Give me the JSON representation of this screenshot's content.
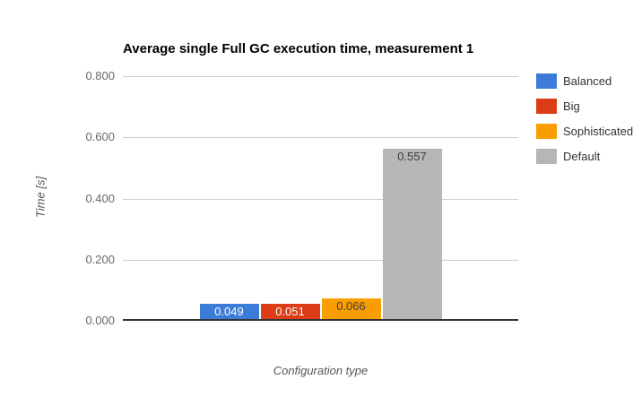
{
  "chart_data": {
    "type": "bar",
    "title": "Average single Full GC execution time, measurement 1",
    "xlabel": "Configuration type",
    "ylabel": "Time [s]",
    "ylim": [
      0,
      0.8
    ],
    "yticks": [
      "0.800",
      "0.600",
      "0.400",
      "0.200",
      "0.000"
    ],
    "ytick_values": [
      0.8,
      0.6,
      0.4,
      0.2,
      0.0
    ],
    "grid": true,
    "legend_position": "right",
    "colors": {
      "gridline": "#cccccc",
      "baseline": "#333333",
      "tick_text": "#666666",
      "axis_title_text": "#555555",
      "legend_text": "#333333"
    },
    "series": [
      {
        "name": "Balanced",
        "value": 0.049,
        "label": "0.049",
        "color": "#3d7bd9",
        "label_color": "#ffffff"
      },
      {
        "name": "Big",
        "value": 0.051,
        "label": "0.051",
        "color": "#dc3d17",
        "label_color": "#ffffff"
      },
      {
        "name": "Sophisticated",
        "value": 0.066,
        "label": "0.066",
        "color": "#fa9d00",
        "label_color": "#404040"
      },
      {
        "name": "Default",
        "value": 0.557,
        "label": "0.557",
        "color": "#b6b6b6",
        "label_color": "#404040"
      }
    ]
  }
}
